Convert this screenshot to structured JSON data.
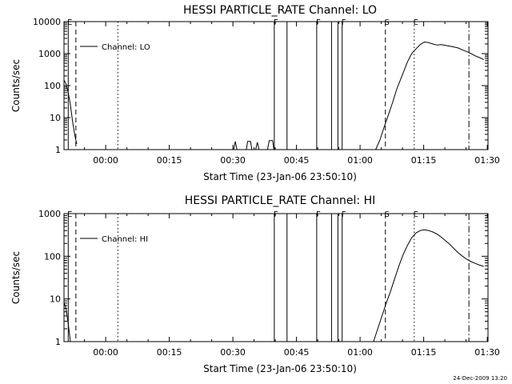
{
  "footer": {
    "timestamp": "24-Dec-2009 13:20"
  },
  "chart_data": [
    {
      "type": "line",
      "title": "HESSI PARTICLE_RATE Channel: LO",
      "xlabel": "Start Time (23-Jan-06 23:50:10)",
      "ylabel": "Counts/sec",
      "x_unit": "minutes after 23:50:10",
      "xlim": [
        0,
        100
      ],
      "ylim": [
        1,
        10000
      ],
      "yscale": "log",
      "x_ticks": [
        {
          "v": 9.83,
          "label": "00:00"
        },
        {
          "v": 24.83,
          "label": "00:15"
        },
        {
          "v": 39.83,
          "label": "00:30"
        },
        {
          "v": 54.83,
          "label": "00:45"
        },
        {
          "v": 69.83,
          "label": "01:00"
        },
        {
          "v": 84.83,
          "label": "01:15"
        },
        {
          "v": 99.83,
          "label": "01:30"
        }
      ],
      "y_ticks": [
        {
          "v": 1,
          "label": "1"
        },
        {
          "v": 10,
          "label": "10"
        },
        {
          "v": 100,
          "label": "100"
        },
        {
          "v": 1000,
          "label": "1000"
        },
        {
          "v": 10000,
          "label": "10000"
        }
      ],
      "legend": {
        "label": "Channel: LO",
        "position": "top-left"
      },
      "series": [
        {
          "x": [
            0,
            0.5,
            1,
            1.5,
            2,
            2.5,
            3
          ],
          "y": [
            150,
            110,
            60,
            25,
            8,
            3,
            1.5
          ]
        },
        {
          "x": [
            40.0,
            40.4,
            40.8
          ],
          "y": [
            1,
            1.8,
            1
          ]
        },
        {
          "x": [
            43.0,
            43.3,
            44.0,
            44.3
          ],
          "y": [
            1,
            1.8,
            1.8,
            1
          ]
        },
        {
          "x": [
            45.2,
            45.6,
            46.0
          ],
          "y": [
            1,
            1.7,
            1
          ]
        },
        {
          "x": [
            48.0,
            48.4,
            49.2,
            49.5
          ],
          "y": [
            1,
            1.9,
            1.9,
            1
          ]
        },
        {
          "x": [
            73.5,
            74.5,
            75.5,
            76.5,
            77.5,
            78.5,
            80,
            81,
            82,
            83,
            84,
            85,
            86,
            87,
            88,
            89,
            90,
            91,
            92,
            93,
            94,
            95,
            96,
            97,
            98,
            98.5,
            99
          ],
          "y": [
            1,
            2,
            5,
            12,
            30,
            80,
            250,
            550,
            1000,
            1400,
            1900,
            2300,
            2200,
            2000,
            1850,
            1900,
            1800,
            1700,
            1600,
            1500,
            1300,
            1150,
            1000,
            850,
            750,
            700,
            650
          ]
        }
      ],
      "markers": [
        {
          "x": 1.0,
          "label": "E",
          "style": "solid"
        },
        {
          "x": 2.8,
          "label": "",
          "style": "dashed"
        },
        {
          "x": 12.7,
          "label": "",
          "style": "dotted"
        },
        {
          "x": 49.6,
          "label": "F",
          "style": "solid"
        },
        {
          "x": 52.6,
          "label": "",
          "style": "solid"
        },
        {
          "x": 59.6,
          "label": "F",
          "style": "solid"
        },
        {
          "x": 63.1,
          "label": "",
          "style": "solid"
        },
        {
          "x": 64.6,
          "label": "",
          "style": "solid"
        },
        {
          "x": 65.6,
          "label": "F",
          "style": "solid"
        },
        {
          "x": 75.8,
          "label": "S",
          "style": "dashed"
        },
        {
          "x": 82.6,
          "label": "E",
          "style": "dotted"
        },
        {
          "x": 95.5,
          "label": "",
          "style": "dashdot"
        }
      ]
    },
    {
      "type": "line",
      "title": "HESSI PARTICLE_RATE Channel: HI",
      "xlabel": "Start Time (23-Jan-06 23:50:10)",
      "ylabel": "Counts/sec",
      "x_unit": "minutes after 23:50:10",
      "xlim": [
        0,
        100
      ],
      "ylim": [
        1,
        1000
      ],
      "yscale": "log",
      "x_ticks": [
        {
          "v": 9.83,
          "label": "00:00"
        },
        {
          "v": 24.83,
          "label": "00:15"
        },
        {
          "v": 39.83,
          "label": "00:30"
        },
        {
          "v": 54.83,
          "label": "00:45"
        },
        {
          "v": 69.83,
          "label": "01:00"
        },
        {
          "v": 84.83,
          "label": "01:15"
        },
        {
          "v": 99.83,
          "label": "01:30"
        }
      ],
      "y_ticks": [
        {
          "v": 1,
          "label": "1"
        },
        {
          "v": 10,
          "label": "10"
        },
        {
          "v": 100,
          "label": "100"
        },
        {
          "v": 1000,
          "label": "1000"
        }
      ],
      "legend": {
        "label": "Channel: HI",
        "position": "top-left"
      },
      "series": [
        {
          "x": [
            0,
            0.3,
            0.6,
            0.9,
            1.2,
            1.5
          ],
          "y": [
            8,
            7,
            5,
            3,
            1.8,
            1
          ]
        },
        {
          "x": [
            73.0,
            74.0,
            75.0,
            76.0,
            77.0,
            78.0,
            79.0,
            80.0,
            81.0,
            82.0,
            83.0,
            84.0,
            85.0,
            86.0,
            87.0,
            88.0,
            89.0,
            90.0,
            91.0,
            92.0,
            93.0,
            94.0,
            95.0,
            96.0,
            97.0,
            98.0,
            99.0
          ],
          "y": [
            1,
            2,
            4,
            8,
            15,
            30,
            60,
            110,
            180,
            270,
            350,
            400,
            420,
            400,
            370,
            330,
            280,
            230,
            190,
            150,
            120,
            100,
            85,
            75,
            68,
            62,
            58
          ]
        }
      ],
      "markers": [
        {
          "x": 1.0,
          "label": "E",
          "style": "solid"
        },
        {
          "x": 2.8,
          "label": "",
          "style": "dashed"
        },
        {
          "x": 12.7,
          "label": "",
          "style": "dotted"
        },
        {
          "x": 49.6,
          "label": "F",
          "style": "solid"
        },
        {
          "x": 52.6,
          "label": "",
          "style": "solid"
        },
        {
          "x": 59.6,
          "label": "F",
          "style": "solid"
        },
        {
          "x": 63.1,
          "label": "",
          "style": "solid"
        },
        {
          "x": 64.6,
          "label": "",
          "style": "solid"
        },
        {
          "x": 65.6,
          "label": "F",
          "style": "solid"
        },
        {
          "x": 75.8,
          "label": "S",
          "style": "dashed"
        },
        {
          "x": 82.6,
          "label": "E",
          "style": "dotted"
        },
        {
          "x": 95.5,
          "label": "",
          "style": "dashdot"
        }
      ]
    }
  ]
}
